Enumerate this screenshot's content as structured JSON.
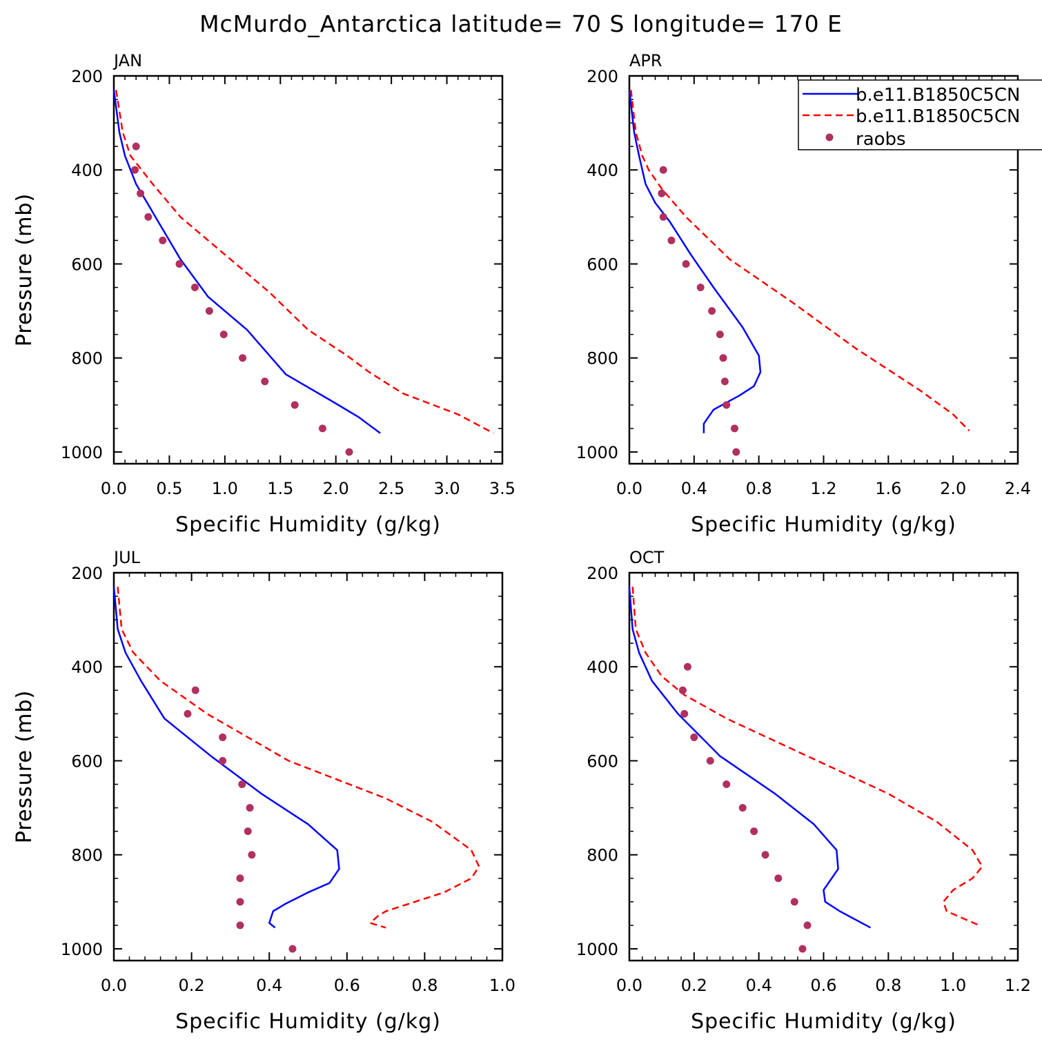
{
  "title": "McMurdo_Antarctica  latitude= 70 S longitude= 170 E",
  "legend": {
    "entries": [
      {
        "label": "b.e11.B1850C5CN",
        "color": "#0000ff",
        "style": "solid"
      },
      {
        "label": "b.e11.B1850C5CN",
        "color": "#ff0000",
        "style": "dashed"
      },
      {
        "label": "raobs",
        "color": "#b03060",
        "style": "marker"
      }
    ]
  },
  "colors": {
    "model1": "#0000ff",
    "model2": "#ff0000",
    "obs": "#b03060"
  },
  "chart_data": [
    {
      "type": "line",
      "title": "JAN",
      "xlabel": "Specific Humidity (g/kg)",
      "ylabel": "Pressure (mb)",
      "xlim": [
        0,
        3.5
      ],
      "ylim": [
        1025,
        200
      ],
      "xticks": [
        "0.0",
        "0.5",
        "1.0",
        "1.5",
        "2.0",
        "2.5",
        "3.0",
        "3.5"
      ],
      "yticks": [
        "200",
        "400",
        "600",
        "800",
        "1000"
      ],
      "series": [
        {
          "name": "b.e11.B1850C5CN",
          "style": "solid",
          "x": [
            0.0,
            0.05,
            0.1,
            0.2,
            0.3,
            0.4,
            0.6,
            0.85,
            1.2,
            1.55,
            1.95,
            2.2,
            2.4
          ],
          "y": [
            230,
            320,
            370,
            430,
            470,
            510,
            590,
            670,
            740,
            835,
            890,
            925,
            960
          ]
        },
        {
          "name": "b.e11.B1850C5CN",
          "style": "dashed",
          "x": [
            0.02,
            0.08,
            0.15,
            0.25,
            0.35,
            0.6,
            1.0,
            1.4,
            1.75,
            2.1,
            2.3,
            2.6,
            3.1,
            3.42
          ],
          "y": [
            230,
            320,
            370,
            400,
            430,
            500,
            580,
            660,
            740,
            795,
            830,
            875,
            920,
            960
          ]
        },
        {
          "name": "raobs",
          "style": "marker",
          "x": [
            0.2,
            0.19,
            0.24,
            0.31,
            0.44,
            0.59,
            0.73,
            0.86,
            0.99,
            1.16,
            1.36,
            1.63,
            1.88,
            2.12
          ],
          "y": [
            350,
            400,
            450,
            500,
            550,
            600,
            650,
            700,
            750,
            800,
            850,
            900,
            950,
            1000
          ]
        }
      ]
    },
    {
      "type": "line",
      "title": "APR",
      "xlabel": "Specific Humidity (g/kg)",
      "ylabel": "Pressure (mb)",
      "xlim": [
        0,
        2.4
      ],
      "ylim": [
        1025,
        200
      ],
      "xticks": [
        "0.0",
        "0.4",
        "0.8",
        "1.2",
        "1.6",
        "2.0",
        "2.4"
      ],
      "yticks": [
        "200",
        "400",
        "600",
        "800",
        "1000"
      ],
      "series": [
        {
          "name": "b.e11.B1850C5CN",
          "style": "solid",
          "x": [
            0.0,
            0.03,
            0.06,
            0.1,
            0.16,
            0.25,
            0.38,
            0.52,
            0.7,
            0.8,
            0.81,
            0.77,
            0.68,
            0.52,
            0.46,
            0.46
          ],
          "y": [
            230,
            320,
            370,
            430,
            470,
            510,
            580,
            650,
            735,
            795,
            830,
            860,
            880,
            910,
            940,
            960
          ]
        },
        {
          "name": "b.e11.B1850C5CN",
          "style": "dashed",
          "x": [
            0.01,
            0.04,
            0.08,
            0.12,
            0.2,
            0.35,
            0.62,
            1.0,
            1.4,
            1.8,
            2.0,
            2.1
          ],
          "y": [
            230,
            320,
            370,
            400,
            440,
            500,
            590,
            680,
            780,
            870,
            920,
            955
          ]
        },
        {
          "name": "raobs",
          "style": "marker",
          "x": [
            0.21,
            0.2,
            0.21,
            0.26,
            0.35,
            0.44,
            0.51,
            0.56,
            0.58,
            0.59,
            0.6,
            0.65,
            0.66
          ],
          "y": [
            400,
            450,
            500,
            550,
            600,
            650,
            700,
            750,
            800,
            850,
            900,
            950,
            1000
          ]
        }
      ]
    },
    {
      "type": "line",
      "title": "JUL",
      "xlabel": "Specific Humidity (g/kg)",
      "ylabel": "Pressure (mb)",
      "xlim": [
        0,
        1.0
      ],
      "ylim": [
        1025,
        200
      ],
      "xticks": [
        "0.0",
        "0.2",
        "0.4",
        "0.6",
        "0.8",
        "1.0"
      ],
      "yticks": [
        "200",
        "400",
        "600",
        "800",
        "1000"
      ],
      "series": [
        {
          "name": "b.e11.B1850C5CN",
          "style": "solid",
          "x": [
            0.0,
            0.01,
            0.03,
            0.07,
            0.13,
            0.25,
            0.38,
            0.5,
            0.575,
            0.58,
            0.555,
            0.5,
            0.44,
            0.41,
            0.4,
            0.415
          ],
          "y": [
            230,
            320,
            370,
            430,
            510,
            590,
            670,
            735,
            790,
            830,
            860,
            880,
            905,
            920,
            945,
            955
          ]
        },
        {
          "name": "b.e11.B1850C5CN",
          "style": "dashed",
          "x": [
            0.01,
            0.02,
            0.05,
            0.12,
            0.24,
            0.45,
            0.7,
            0.82,
            0.92,
            0.94,
            0.92,
            0.85,
            0.7,
            0.68,
            0.66,
            0.7
          ],
          "y": [
            230,
            320,
            370,
            430,
            500,
            600,
            680,
            730,
            790,
            825,
            850,
            880,
            920,
            930,
            945,
            955
          ]
        },
        {
          "name": "raobs",
          "style": "marker",
          "x": [
            0.21,
            0.19,
            0.28,
            0.28,
            0.33,
            0.35,
            0.345,
            0.355,
            0.325,
            0.325,
            0.325,
            0.46
          ],
          "y": [
            450,
            500,
            550,
            600,
            650,
            700,
            750,
            800,
            850,
            900,
            950,
            1000
          ]
        }
      ]
    },
    {
      "type": "line",
      "title": "OCT",
      "xlabel": "Specific Humidity (g/kg)",
      "ylabel": "Pressure (mb)",
      "xlim": [
        0,
        1.2
      ],
      "ylim": [
        1025,
        200
      ],
      "xticks": [
        "0.0",
        "0.2",
        "0.4",
        "0.6",
        "0.8",
        "1.0",
        "1.2"
      ],
      "yticks": [
        "200",
        "400",
        "600",
        "800",
        "1000"
      ],
      "series": [
        {
          "name": "b.e11.B1850C5CN",
          "style": "solid",
          "x": [
            0.0,
            0.01,
            0.03,
            0.07,
            0.15,
            0.28,
            0.45,
            0.57,
            0.64,
            0.645,
            0.6,
            0.605,
            0.65,
            0.745
          ],
          "y": [
            230,
            320,
            370,
            430,
            500,
            590,
            670,
            735,
            790,
            830,
            875,
            900,
            920,
            955
          ]
        },
        {
          "name": "b.e11.B1850C5CN",
          "style": "dashed",
          "x": [
            0.01,
            0.02,
            0.05,
            0.1,
            0.17,
            0.3,
            0.55,
            0.8,
            0.95,
            1.06,
            1.09,
            1.06,
            1.0,
            0.97,
            0.98,
            1.08
          ],
          "y": [
            230,
            320,
            370,
            420,
            460,
            510,
            590,
            670,
            730,
            790,
            825,
            850,
            875,
            900,
            920,
            950
          ]
        },
        {
          "name": "raobs",
          "style": "marker",
          "x": [
            0.18,
            0.165,
            0.17,
            0.2,
            0.25,
            0.3,
            0.35,
            0.385,
            0.42,
            0.46,
            0.51,
            0.55,
            0.535
          ],
          "y": [
            400,
            450,
            500,
            550,
            600,
            650,
            700,
            750,
            800,
            850,
            900,
            950,
            1000
          ]
        }
      ]
    }
  ]
}
